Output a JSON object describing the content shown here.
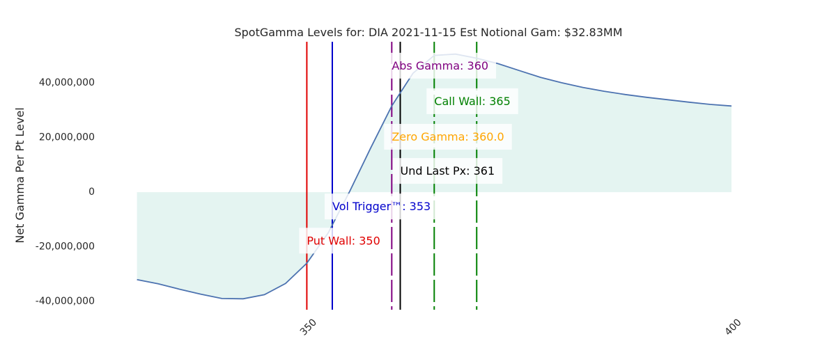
{
  "chart_data": {
    "type": "area",
    "title": "SpotGamma Levels for: DIA  2021-11-15 Est Notional Gam: $32.83MM",
    "xlabel": "",
    "ylabel": "Net Gamma Per Pt Level",
    "xlim": [
      327,
      400
    ],
    "ylim": [
      -43000000,
      55000000
    ],
    "grid": false,
    "x_ticks": [
      350,
      400
    ],
    "x_tick_labels": [
      "350",
      "400"
    ],
    "y_ticks": [
      40000000,
      20000000,
      0,
      -20000000,
      -40000000
    ],
    "y_tick_labels": [
      "40,000,000",
      "20,000,000",
      "0",
      "-20,000,000",
      "-40,000,000"
    ],
    "colors": {
      "line": "#4c72b0",
      "fill": "#e4f4f1",
      "abs_gamma": "#800080",
      "call_wall": "#008000",
      "zero_gamma": "#ffa500",
      "und_last_px": "#000000",
      "vol_trigger": "#0000cc",
      "put_wall": "#e00000",
      "text": "#262626"
    },
    "series": [
      {
        "x": [
          330,
          332.5,
          335,
          337.5,
          340,
          342.5,
          345,
          347.5,
          350,
          352.5,
          355,
          357.5,
          360,
          362.5,
          365,
          367.5,
          370,
          372.5,
          375,
          377.5,
          380,
          382.5,
          385,
          387.5,
          390,
          392.5,
          395,
          397.5,
          400
        ],
        "values": [
          -32000000,
          -33500000,
          -35500000,
          -37300000,
          -38900000,
          -39000000,
          -37500000,
          -33400000,
          -26000000,
          -15000000,
          0,
          16000000,
          31500000,
          43500000,
          50000000,
          50500000,
          49000000,
          47000000,
          44500000,
          42000000,
          40000000,
          38300000,
          36900000,
          35700000,
          34700000,
          33800000,
          32900000,
          32100000,
          31500000
        ]
      }
    ],
    "levels": [
      {
        "name": "put_wall",
        "x": 350,
        "style": "solid",
        "color": "#e00000",
        "label": "Put Wall: 350",
        "label_y": -18000000,
        "label_align": "start"
      },
      {
        "name": "vol_trigger",
        "x": 353,
        "style": "solid",
        "color": "#0000cc",
        "label": "Vol Trigger™: 353",
        "label_y": -5500000,
        "label_align": "start"
      },
      {
        "name": "abs_gamma",
        "x": 360,
        "style": "dashed",
        "color": "#800080",
        "label": "Abs Gamma: 360",
        "label_y": 46000000,
        "label_align": "start"
      },
      {
        "name": "und_last_px",
        "x": 361,
        "style": "solid",
        "color": "#000000",
        "label": "Und Last Px: 361",
        "label_y": 7500000,
        "label_align": "start"
      },
      {
        "name": "zero_gamma",
        "x": 360,
        "style": "none",
        "color": "#ffa500",
        "label": "Zero Gamma: 360.0",
        "label_y": 20000000,
        "label_align": "start"
      },
      {
        "name": "call_wall_a",
        "x": 365,
        "style": "dashed",
        "color": "#008000",
        "label": "Call Wall: 365",
        "label_y": 33000000,
        "label_align": "start"
      },
      {
        "name": "call_wall_b",
        "x": 370,
        "style": "dashed",
        "color": "#008000",
        "label": "",
        "label_y": 0,
        "label_align": "start"
      }
    ]
  }
}
